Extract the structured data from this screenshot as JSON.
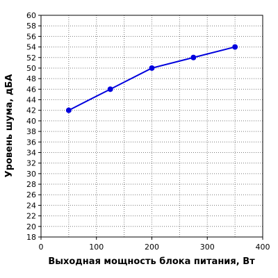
{
  "chart_data": {
    "type": "line",
    "title": "",
    "xlabel": "Выходная мощность блока питания, Вт",
    "ylabel": "Уровень шума, дБА",
    "xlim": [
      0,
      400
    ],
    "ylim": [
      18,
      60
    ],
    "xticks": [
      0,
      100,
      200,
      300,
      400
    ],
    "yticks": [
      18,
      20,
      22,
      24,
      26,
      28,
      30,
      32,
      34,
      36,
      38,
      40,
      42,
      44,
      46,
      48,
      50,
      52,
      54,
      56,
      58,
      60
    ],
    "grid": true,
    "legend": "none",
    "series": [
      {
        "color": "#0000dd",
        "x": [
          50,
          125,
          200,
          275,
          350
        ],
        "y": [
          42,
          46,
          50,
          52,
          54
        ]
      }
    ]
  }
}
